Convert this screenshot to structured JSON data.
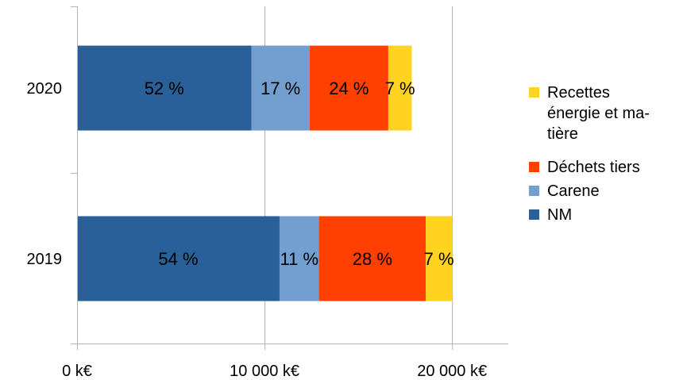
{
  "chart_data": {
    "type": "bar",
    "orientation": "horizontal",
    "stacked": true,
    "categories": [
      "2020",
      "2019"
    ],
    "series": [
      {
        "name": "NM",
        "values": [
          9300,
          10800
        ],
        "labels": [
          "52 %",
          "54 %"
        ],
        "color": "#2A6099"
      },
      {
        "name": "Carene",
        "values": [
          3100,
          2100
        ],
        "labels": [
          "17 %",
          "11 %"
        ],
        "color": "#729FCF"
      },
      {
        "name": "Déchets tiers",
        "values": [
          4200,
          5700
        ],
        "labels": [
          "24 %",
          "28 %"
        ],
        "color": "#FF4000"
      },
      {
        "name": "Recettes énergie et matière",
        "legend_lines": [
          "Recettes",
          "énergie et ma-",
          "tière"
        ],
        "values": [
          1250,
          1400
        ],
        "labels": [
          "7 %",
          "7 %"
        ],
        "color": "#FFD320"
      }
    ],
    "xlim": [
      0,
      23000
    ],
    "xticks": [
      0,
      10000,
      20000
    ],
    "xtick_labels": [
      "0 k€",
      "10 000 k€",
      "20 000 k€"
    ],
    "grid": "vertical",
    "legend": "right",
    "title": "",
    "xlabel": "",
    "ylabel": ""
  }
}
